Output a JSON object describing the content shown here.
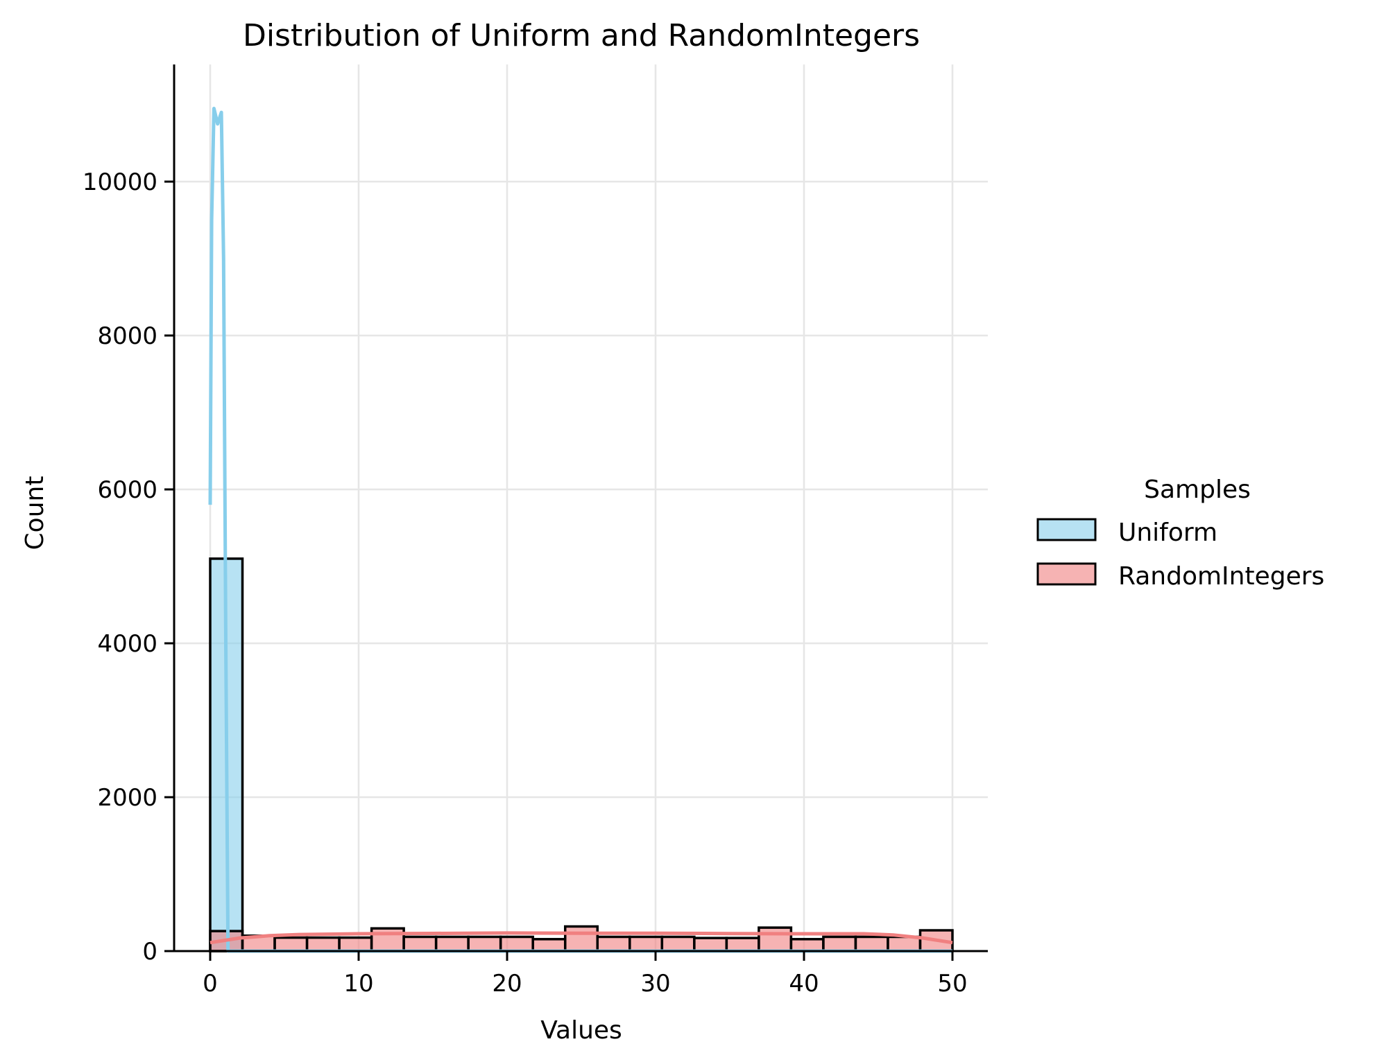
{
  "chart_data": {
    "type": "bar",
    "subtype": "histogram_with_kde",
    "title": "Distribution of Uniform and RandomIntegers",
    "xlabel": "Values",
    "ylabel": "Count",
    "xlim": [
      -3,
      52.5
    ],
    "ylim": [
      0,
      11500
    ],
    "xticks": [
      0,
      10,
      20,
      30,
      40,
      50
    ],
    "yticks": [
      0,
      2000,
      4000,
      6000,
      8000,
      10000
    ],
    "grid": true,
    "legend": {
      "title": "Samples",
      "position": "right-outside",
      "entries": [
        {
          "label": "Uniform",
          "color": "#87CEEB"
        },
        {
          "label": "RandomIntegers",
          "color": "#F08080"
        }
      ]
    },
    "bin_edges": [
      0,
      2.174,
      4.348,
      6.522,
      8.696,
      10.87,
      13.043,
      15.217,
      17.391,
      19.565,
      21.739,
      23.913,
      26.087,
      28.261,
      30.435,
      32.609,
      34.783,
      36.957,
      39.13,
      41.304,
      43.478,
      45.652,
      47.826,
      50
    ],
    "series": [
      {
        "name": "Uniform",
        "color": "#87CEEB",
        "values": [
          5100,
          0,
          0,
          0,
          0,
          0,
          0,
          0,
          0,
          0,
          0,
          0,
          0,
          0,
          0,
          0,
          0,
          0,
          0,
          0,
          0,
          0,
          0
        ],
        "kde": {
          "x": [
            0,
            0.1,
            0.25,
            0.5,
            0.75,
            0.9,
            1.05,
            1.2,
            1.3,
            50
          ],
          "y": [
            5800,
            9500,
            10950,
            10750,
            10900,
            9000,
            4000,
            0,
            0,
            0
          ]
        }
      },
      {
        "name": "RandomIntegers",
        "color": "#F08080",
        "values": [
          260,
          200,
          175,
          175,
          175,
          295,
          185,
          185,
          185,
          185,
          155,
          320,
          185,
          185,
          185,
          170,
          170,
          305,
          155,
          185,
          185,
          185,
          270
        ],
        "kde": {
          "x": [
            0,
            2,
            4,
            6,
            10,
            15,
            20,
            25,
            30,
            35,
            40,
            44,
            46,
            48,
            50
          ],
          "y": [
            110,
            170,
            200,
            215,
            225,
            230,
            235,
            232,
            232,
            228,
            225,
            225,
            210,
            170,
            110
          ]
        }
      }
    ]
  }
}
